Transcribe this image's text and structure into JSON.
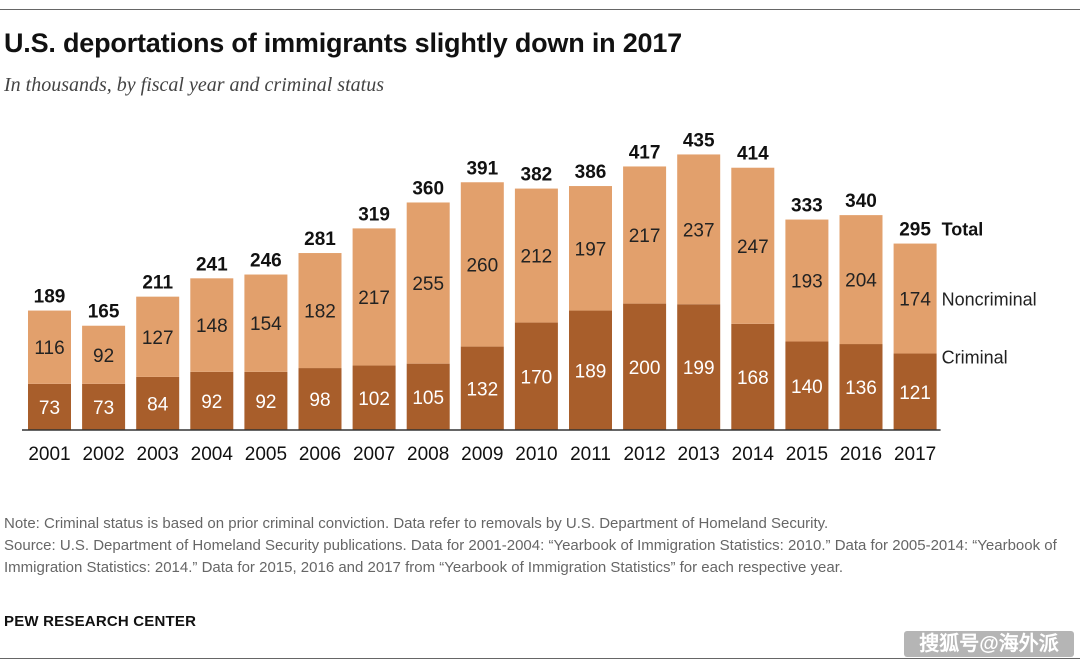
{
  "header": {
    "title": "U.S. deportations of immigrants slightly down in 2017",
    "subtitle": "In thousands, by fiscal year and criminal status"
  },
  "chart_data": {
    "type": "bar",
    "stacked": true,
    "title": "U.S. deportations of immigrants slightly down in 2017",
    "subtitle": "In thousands, by fiscal year and criminal status",
    "categories": [
      "2001",
      "2002",
      "2003",
      "2004",
      "2005",
      "2006",
      "2007",
      "2008",
      "2009",
      "2010",
      "2011",
      "2012",
      "2013",
      "2014",
      "2015",
      "2016",
      "2017"
    ],
    "series": [
      {
        "name": "Criminal",
        "color": "#a85e2b",
        "values": [
          73,
          73,
          84,
          92,
          92,
          98,
          102,
          105,
          132,
          170,
          189,
          200,
          199,
          168,
          140,
          136,
          121
        ]
      },
      {
        "name": "Noncriminal",
        "color": "#e2a06c",
        "values": [
          116,
          92,
          127,
          148,
          154,
          182,
          217,
          255,
          260,
          212,
          197,
          217,
          237,
          247,
          193,
          204,
          174
        ]
      }
    ],
    "totals": [
      189,
      165,
      211,
      241,
      246,
      281,
      319,
      360,
      391,
      382,
      386,
      417,
      435,
      414,
      333,
      340,
      295
    ],
    "total_label": "Total",
    "ylim": [
      0,
      435
    ],
    "xlabel": "",
    "ylabel": "",
    "grid": false
  },
  "footer": {
    "note": "Note: Criminal status is based on prior criminal conviction. Data refer to removals by U.S. Department of Homeland Security.",
    "source": "Source: U.S. Department of Homeland Security publications. Data for 2001-2004: “Yearbook of Immigration Statistics: 2010.” Data for 2005-2014: “Yearbook of Immigration Statistics: 2014.” Data for 2015,  2016 and 2017 from “Yearbook of Immigration Statistics” for each respective year.",
    "brand": "PEW RESEARCH CENTER",
    "watermark": "搜狐号@海外派"
  }
}
